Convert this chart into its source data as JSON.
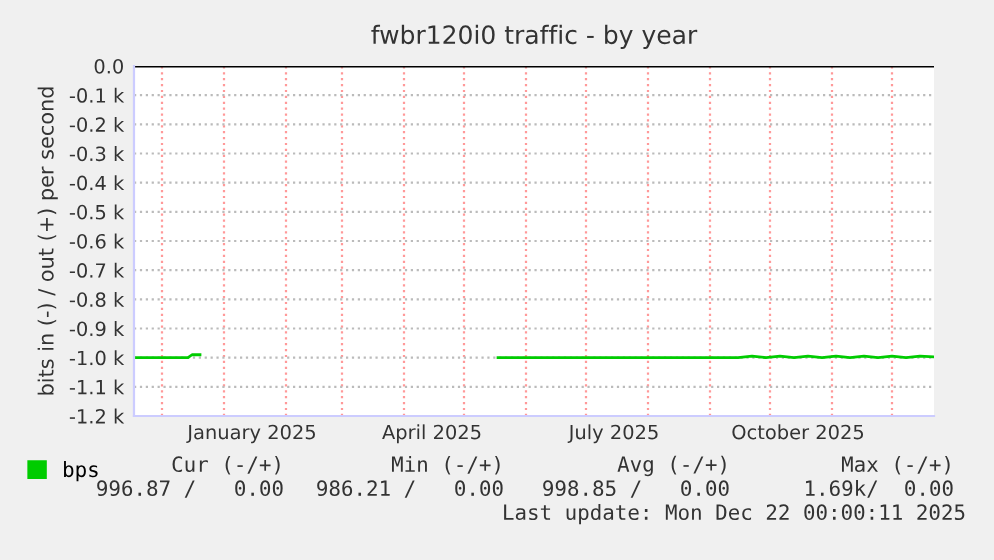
{
  "chart_data": {
    "type": "line",
    "title": "fwbr120i0 traffic - by year",
    "ylabel": "bits in (-) / out (+) per second",
    "xlim": [
      "2024-11-17",
      "2025-12-22"
    ],
    "xticks": [
      {
        "value": "2024-12-01",
        "label": null
      },
      {
        "value": "2025-01-01",
        "label": null
      },
      {
        "value": "2025-02-01",
        "label": null
      },
      {
        "value": "2025-03-01",
        "label": null
      },
      {
        "value": "2025-04-01",
        "label": null
      },
      {
        "value": "2025-05-01",
        "label": null
      },
      {
        "value": "2025-06-01",
        "label": null
      },
      {
        "value": "2025-07-01",
        "label": null
      },
      {
        "value": "2025-08-01",
        "label": null
      },
      {
        "value": "2025-09-01",
        "label": null
      },
      {
        "value": "2025-10-01",
        "label": null
      },
      {
        "value": "2025-11-01",
        "label": null
      },
      {
        "value": "2025-12-01",
        "label": null
      },
      {
        "value": "2025-01-15",
        "label": "January 2025"
      },
      {
        "value": "2025-04-15",
        "label": "April 2025"
      },
      {
        "value": "2025-07-15",
        "label": "July 2025"
      },
      {
        "value": "2025-10-15",
        "label": "October 2025"
      }
    ],
    "ylim": [
      -1200,
      0
    ],
    "yticks": [
      {
        "value": 0,
        "label": "0.0"
      },
      {
        "value": -100,
        "label": "-0.1 k"
      },
      {
        "value": -200,
        "label": "-0.2 k"
      },
      {
        "value": -300,
        "label": "-0.3 k"
      },
      {
        "value": -400,
        "label": "-0.4 k"
      },
      {
        "value": -500,
        "label": "-0.5 k"
      },
      {
        "value": -600,
        "label": "-0.6 k"
      },
      {
        "value": -700,
        "label": "-0.7 k"
      },
      {
        "value": -800,
        "label": "-0.8 k"
      },
      {
        "value": -900,
        "label": "-0.9 k"
      },
      {
        "value": -1000,
        "label": "-1.0 k"
      },
      {
        "value": -1100,
        "label": "-1.1 k"
      },
      {
        "value": -1200,
        "label": "-1.2 k"
      }
    ],
    "grid": true,
    "legend": "bottom left",
    "ref_lines": [
      {
        "axis": "y",
        "value": 0,
        "color": "#000000"
      }
    ],
    "series": [
      {
        "name": "bps",
        "color": "#00cc00",
        "x": [
          "2024-11-17",
          "2024-12-14",
          "2024-12-16",
          "2024-12-20",
          "2025-01-01",
          "2025-05-18",
          "2025-09-15",
          "2025-09-22",
          "2025-09-29",
          "2025-10-06",
          "2025-10-13",
          "2025-10-20",
          "2025-10-27",
          "2025-11-03",
          "2025-11-10",
          "2025-11-17",
          "2025-11-24",
          "2025-12-01",
          "2025-12-08",
          "2025-12-15",
          "2025-12-22"
        ],
        "values": [
          -1000,
          -1000,
          -990,
          -990,
          null,
          -1000,
          -1000,
          -995,
          -1000,
          -995,
          -1000,
          -995,
          -1000,
          -995,
          -1000,
          -995,
          -1000,
          -995,
          -1000,
          -995,
          -997
        ]
      }
    ],
    "annotations": [
      "Cur (-/+)",
      "Min (-/+)",
      "Avg (-/+)",
      "Max (-/+)",
      "996.87 /   0.00",
      "986.21 /   0.00",
      "998.85 /   0.00",
      "1.69k/  0.00",
      "Last update: Mon Dec 22 00:00:11 2025"
    ]
  }
}
